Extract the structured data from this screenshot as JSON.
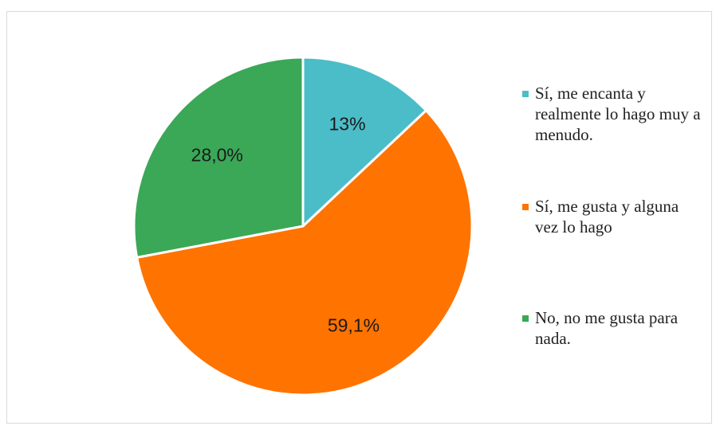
{
  "chart_data": {
    "type": "pie",
    "slices": [
      {
        "label": "Sí, me encanta y realmente lo hago muy a menudo.",
        "value": 13,
        "display": "13%",
        "color": "#4bbdc8"
      },
      {
        "label": "Sí, me gusta y alguna vez lo hago",
        "value": 59.1,
        "display": "59,1%",
        "color": "#ff7300"
      },
      {
        "label": "No, no me gusta para nada.",
        "value": 28.0,
        "display": "28,0%",
        "color": "#3aa857"
      }
    ],
    "legend_position": "right"
  }
}
